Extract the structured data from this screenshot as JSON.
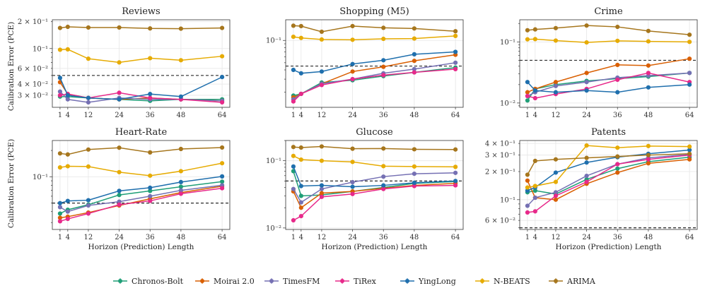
{
  "figure": {
    "x_axis_label": "Horizon (Prediction) Length",
    "y_axis_label": "Calibration Error (PCE)"
  },
  "legend": [
    {
      "name": "Chronos-Bolt",
      "color": "#1f9e77"
    },
    {
      "name": "Moirai 2.0",
      "color": "#d95f02"
    },
    {
      "name": "TimesFM",
      "color": "#7570b3"
    },
    {
      "name": "TiRex",
      "color": "#e7298a"
    },
    {
      "name": "YingLong",
      "color": "#1f6fad"
    },
    {
      "name": "N-BEATS",
      "color": "#e6ab02"
    },
    {
      "name": "ARIMA",
      "color": "#a6761d"
    }
  ],
  "chart_data": [
    {
      "type": "line",
      "title": "Reviews",
      "xlabel": "",
      "ylabel": "Calibration Error (PCE)",
      "x": [
        1,
        4,
        12,
        24,
        36,
        48,
        64
      ],
      "xticks": [
        "1",
        "4",
        "12",
        "24",
        "36",
        "48",
        "64"
      ],
      "yscale": "log",
      "ylim": [
        0.022,
        0.21
      ],
      "reference_line": 0.05,
      "yticks": [
        {
          "value": 0.03,
          "label": "3 × 10⁻²"
        },
        {
          "value": 0.04,
          "label": "4 × 10⁻²"
        },
        {
          "value": 0.06,
          "label": "6 × 10⁻²"
        },
        {
          "value": 0.1,
          "label": "10⁻¹"
        },
        {
          "value": 0.2,
          "label": "2 × 10⁻¹"
        }
      ],
      "series": [
        {
          "name": "Chronos-Bolt",
          "values": [
            0.029,
            0.029,
            0.028,
            0.027,
            0.026,
            0.027,
            0.027
          ]
        },
        {
          "name": "Moirai 2.0",
          "values": [
            0.042,
            0.031,
            0.028,
            0.027,
            0.028,
            0.027,
            0.026
          ]
        },
        {
          "name": "TimesFM",
          "values": [
            0.033,
            0.027,
            0.025,
            0.028,
            0.027,
            0.027,
            0.026
          ]
        },
        {
          "name": "TiRex",
          "values": [
            0.03,
            0.031,
            0.028,
            0.032,
            0.028,
            0.027,
            0.025
          ]
        },
        {
          "name": "YingLong",
          "values": [
            0.047,
            0.03,
            0.028,
            0.027,
            0.031,
            0.029,
            0.048
          ]
        },
        {
          "name": "N-BEATS",
          "values": [
            0.097,
            0.098,
            0.077,
            0.07,
            0.078,
            0.074,
            0.082
          ]
        },
        {
          "name": "ARIMA",
          "values": [
            0.17,
            0.175,
            0.172,
            0.172,
            0.168,
            0.167,
            0.17
          ]
        }
      ]
    },
    {
      "type": "line",
      "title": "Shopping (M5)",
      "xlabel": "",
      "ylabel": "",
      "x": [
        1,
        4,
        12,
        24,
        36,
        48,
        64
      ],
      "xticks": [
        "1",
        "4",
        "12",
        "24",
        "36",
        "48",
        "64"
      ],
      "yscale": "log",
      "ylim": [
        0.0125,
        0.19
      ],
      "reference_line": 0.045,
      "yticks": [
        {
          "value": 0.1,
          "label": "10⁻¹"
        }
      ],
      "series": [
        {
          "name": "Chronos-Bolt",
          "values": [
            0.018,
            0.019,
            0.027,
            0.029,
            0.033,
            0.037,
            0.043
          ]
        },
        {
          "name": "Moirai 2.0",
          "values": [
            0.017,
            0.019,
            0.026,
            0.038,
            0.044,
            0.053,
            0.064
          ]
        },
        {
          "name": "TimesFM",
          "values": [
            0.016,
            0.019,
            0.026,
            0.03,
            0.036,
            0.041,
            0.05
          ]
        },
        {
          "name": "TiRex",
          "values": [
            0.015,
            0.019,
            0.025,
            0.03,
            0.034,
            0.037,
            0.041
          ]
        },
        {
          "name": "YingLong",
          "values": [
            0.04,
            0.036,
            0.038,
            0.048,
            0.054,
            0.065,
            0.07
          ]
        },
        {
          "name": "N-BEATS",
          "values": [
            0.112,
            0.108,
            0.103,
            0.102,
            0.105,
            0.106,
            0.115
          ]
        },
        {
          "name": "ARIMA",
          "values": [
            0.158,
            0.156,
            0.131,
            0.156,
            0.148,
            0.145,
            0.133
          ]
        }
      ]
    },
    {
      "type": "line",
      "title": "Crime",
      "xlabel": "",
      "ylabel": "",
      "x": [
        1,
        4,
        12,
        24,
        36,
        48,
        64
      ],
      "xticks": [
        "1",
        "4",
        "12",
        "24",
        "36",
        "48",
        "64"
      ],
      "yscale": "log",
      "ylim": [
        0.0085,
        0.23
      ],
      "reference_line": 0.05,
      "yticks": [
        {
          "value": 0.01,
          "label": "10⁻²"
        },
        {
          "value": 0.1,
          "label": "10⁻¹"
        }
      ],
      "series": [
        {
          "name": "Chronos-Bolt",
          "values": [
            0.011,
            0.017,
            0.02,
            0.023,
            0.025,
            0.027,
            0.031
          ]
        },
        {
          "name": "Moirai 2.0",
          "values": [
            0.015,
            0.017,
            0.022,
            0.031,
            0.042,
            0.041,
            0.053
          ]
        },
        {
          "name": "TimesFM",
          "values": [
            0.013,
            0.015,
            0.019,
            0.022,
            0.026,
            0.028,
            0.031
          ]
        },
        {
          "name": "TiRex",
          "values": [
            0.013,
            0.012,
            0.014,
            0.017,
            0.024,
            0.031,
            0.022
          ]
        },
        {
          "name": "YingLong",
          "values": [
            0.022,
            0.016,
            0.015,
            0.016,
            0.015,
            0.018,
            0.02
          ]
        },
        {
          "name": "N-BEATS",
          "values": [
            0.11,
            0.111,
            0.105,
            0.098,
            0.104,
            0.102,
            0.1
          ]
        },
        {
          "name": "ARIMA",
          "values": [
            0.155,
            0.16,
            0.168,
            0.185,
            0.176,
            0.151,
            0.131
          ]
        }
      ]
    },
    {
      "type": "line",
      "title": "Heart-Rate",
      "xlabel": "Horizon (Prediction) Length",
      "ylabel": "Calibration Error (PCE)",
      "x": [
        1,
        4,
        12,
        24,
        36,
        48,
        64
      ],
      "xticks": [
        "1",
        "4",
        "12",
        "24",
        "36",
        "48",
        "64"
      ],
      "yscale": "log",
      "ylim": [
        0.025,
        0.26
      ],
      "reference_line": 0.05,
      "yticks": [
        {
          "value": 0.1,
          "label": "10⁻¹"
        }
      ],
      "series": [
        {
          "name": "Chronos-Bolt",
          "values": [
            0.038,
            0.042,
            0.048,
            0.062,
            0.069,
            0.077,
            0.088
          ]
        },
        {
          "name": "Moirai 2.0",
          "values": [
            0.034,
            0.035,
            0.039,
            0.047,
            0.056,
            0.066,
            0.078
          ]
        },
        {
          "name": "TimesFM",
          "values": [
            0.045,
            0.04,
            0.047,
            0.052,
            0.06,
            0.07,
            0.08
          ]
        },
        {
          "name": "TiRex",
          "values": [
            0.031,
            0.033,
            0.038,
            0.048,
            0.053,
            0.064,
            0.074
          ]
        },
        {
          "name": "YingLong",
          "values": [
            0.05,
            0.053,
            0.054,
            0.069,
            0.075,
            0.087,
            0.101
          ]
        },
        {
          "name": "N-BEATS",
          "values": [
            0.128,
            0.132,
            0.131,
            0.113,
            0.103,
            0.116,
            0.143
          ]
        },
        {
          "name": "ARIMA",
          "values": [
            0.185,
            0.18,
            0.205,
            0.215,
            0.19,
            0.208,
            0.216
          ]
        }
      ]
    },
    {
      "type": "line",
      "title": "Glucose",
      "xlabel": "Horizon (Prediction) Length",
      "ylabel": "",
      "x": [
        1,
        4,
        12,
        24,
        36,
        48,
        64
      ],
      "xticks": [
        "1",
        "4",
        "12",
        "24",
        "36",
        "48",
        "64"
      ],
      "yscale": "log",
      "ylim": [
        0.0095,
        0.2
      ],
      "reference_line": 0.05,
      "yticks": [
        {
          "value": 0.01,
          "label": "10⁻²"
        },
        {
          "value": 0.1,
          "label": "10⁻¹"
        }
      ],
      "series": [
        {
          "name": "Chronos-Bolt",
          "values": [
            0.07,
            0.03,
            0.031,
            0.035,
            0.04,
            0.046,
            0.049
          ]
        },
        {
          "name": "Moirai 2.0",
          "values": [
            0.035,
            0.02,
            0.033,
            0.035,
            0.039,
            0.043,
            0.046
          ]
        },
        {
          "name": "TimesFM",
          "values": [
            0.038,
            0.024,
            0.038,
            0.048,
            0.058,
            0.064,
            0.066
          ]
        },
        {
          "name": "TiRex",
          "values": [
            0.013,
            0.015,
            0.029,
            0.032,
            0.038,
            0.042,
            0.043
          ]
        },
        {
          "name": "YingLong",
          "values": [
            0.082,
            0.042,
            0.043,
            0.041,
            0.043,
            0.047,
            0.05
          ]
        },
        {
          "name": "N-BEATS",
          "values": [
            0.118,
            0.104,
            0.1,
            0.096,
            0.083,
            0.082,
            0.081
          ]
        },
        {
          "name": "ARIMA",
          "values": [
            0.16,
            0.157,
            0.163,
            0.151,
            0.152,
            0.148,
            0.147
          ]
        }
      ]
    },
    {
      "type": "line",
      "title": "Patents",
      "xlabel": "Horizon (Prediction) Length",
      "ylabel": "",
      "x": [
        1,
        4,
        12,
        24,
        36,
        48,
        64
      ],
      "xticks": [
        "1",
        "4",
        "12",
        "24",
        "36",
        "48",
        "64"
      ],
      "yscale": "log",
      "ylim": [
        0.048,
        0.43
      ],
      "reference_line": 0.05,
      "yticks": [
        {
          "value": 0.06,
          "label": "6 × 10⁻²"
        },
        {
          "value": 0.1,
          "label": "10⁻¹"
        },
        {
          "value": 0.2,
          "label": "2 × 10⁻¹"
        },
        {
          "value": 0.3,
          "label": "3 × 10⁻¹"
        },
        {
          "value": 0.4,
          "label": "4 × 10⁻¹"
        }
      ],
      "series": [
        {
          "name": "Chronos-Bolt",
          "values": [
            0.12,
            0.125,
            0.115,
            0.165,
            0.215,
            0.255,
            0.285
          ]
        },
        {
          "name": "Moirai 2.0",
          "values": [
            0.16,
            0.105,
            0.1,
            0.148,
            0.195,
            0.245,
            0.27
          ]
        },
        {
          "name": "TimesFM",
          "values": [
            0.086,
            0.105,
            0.12,
            0.18,
            0.24,
            0.28,
            0.305
          ]
        },
        {
          "name": "TiRex",
          "values": [
            0.073,
            0.075,
            0.11,
            0.155,
            0.24,
            0.27,
            0.3
          ]
        },
        {
          "name": "YingLong",
          "values": [
            0.125,
            0.135,
            0.195,
            0.25,
            0.285,
            0.31,
            0.34
          ]
        },
        {
          "name": "N-BEATS",
          "values": [
            0.135,
            0.14,
            0.155,
            0.38,
            0.36,
            0.375,
            0.37
          ]
        },
        {
          "name": "ARIMA",
          "values": [
            0.185,
            0.26,
            0.27,
            0.28,
            0.29,
            0.3,
            0.31
          ]
        }
      ]
    }
  ]
}
